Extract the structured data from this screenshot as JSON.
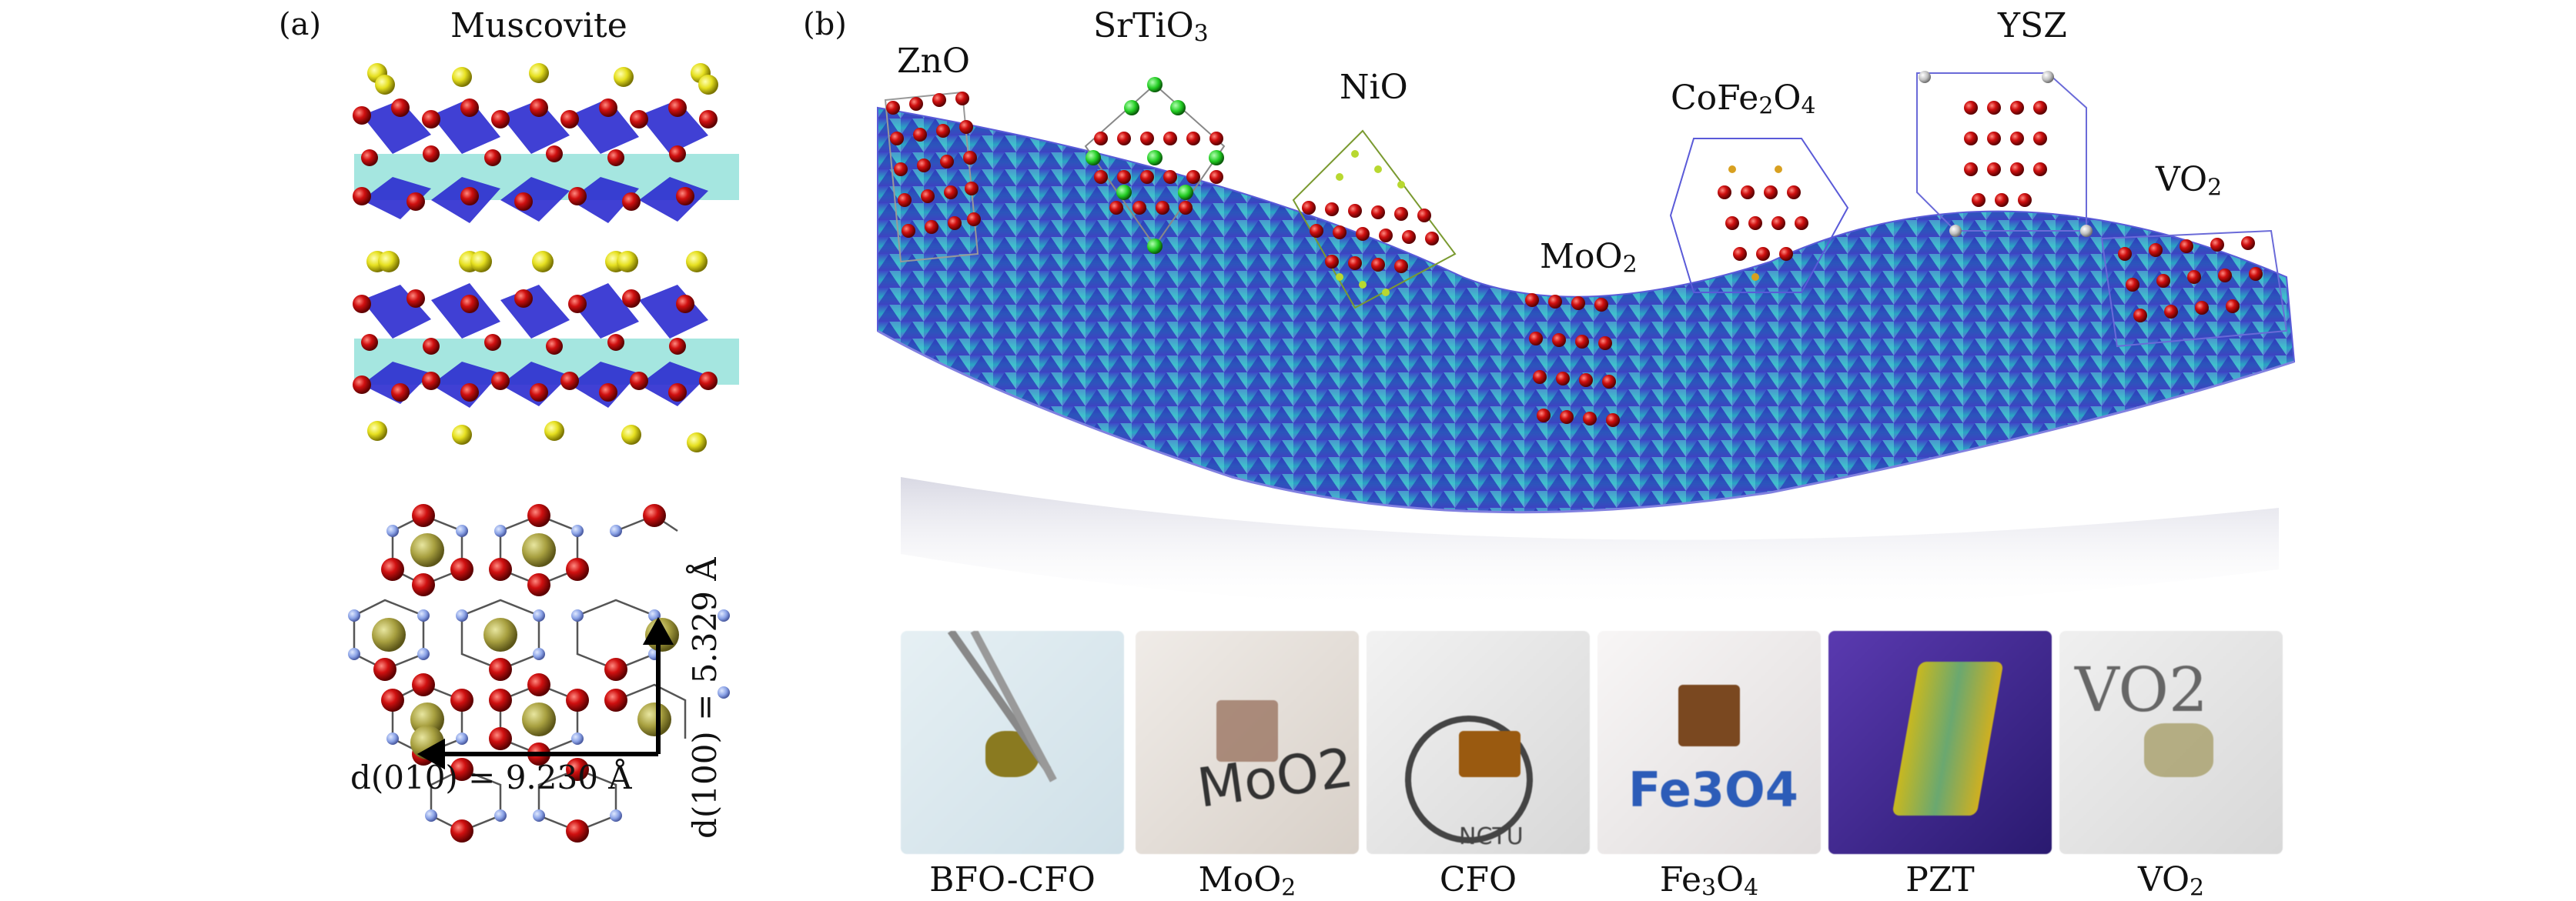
{
  "panel_a": {
    "label": "(a)",
    "title": "Muscovite",
    "dim_horizontal": "d(010) = 9.230 Å",
    "dim_vertical": "d(100) = 5.329 Å"
  },
  "panel_b": {
    "label": "(b)",
    "materials": [
      {
        "name": "ZnO"
      },
      {
        "name": "SrTiO",
        "sub": "3"
      },
      {
        "name": "NiO"
      },
      {
        "name": "MoO",
        "sub": "2"
      },
      {
        "name": "CoFe",
        "sub": "2",
        "tail": "O",
        "sub2": "4"
      },
      {
        "name": "YSZ"
      },
      {
        "name": "VO",
        "sub": "2"
      }
    ],
    "photos": [
      {
        "caption": "BFO-CFO"
      },
      {
        "caption": "MoO",
        "sub": "2",
        "print_text": "MoO2"
      },
      {
        "caption": "CFO",
        "print_text": "NCTU"
      },
      {
        "caption": "Fe",
        "sub": "3",
        "tail": "O",
        "sub2": "4",
        "print_text": "Fe3O4"
      },
      {
        "caption": "PZT"
      },
      {
        "caption": "VO",
        "sub": "2",
        "print_text": "VO2"
      }
    ]
  }
}
